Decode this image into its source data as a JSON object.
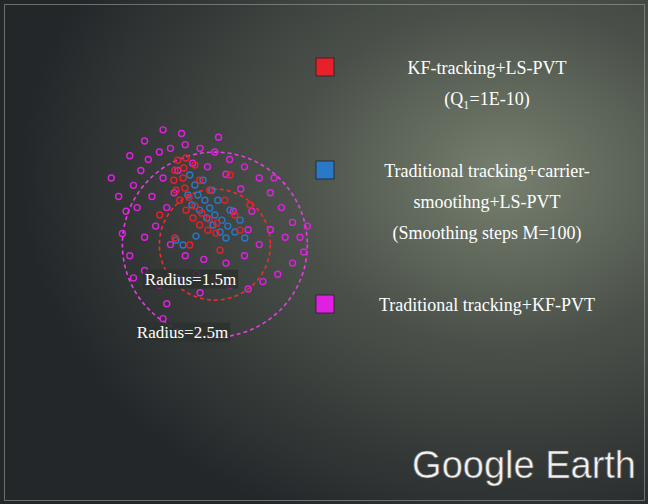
{
  "chart_data": {
    "type": "scatter",
    "xlim": [
      -5.7,
      11.6
    ],
    "ylim": [
      -6.9,
      6.5
    ],
    "tick_labels": false,
    "grid": false,
    "legend": "upper right",
    "series": [
      {
        "name": "KF-tracking+LS-PVT (Q₁=1E-10)",
        "color": "#e8202a",
        "marker": "circle",
        "x": [
          -1.0,
          -1.08,
          -1.11,
          -1.05,
          -0.95,
          -0.78,
          -0.59,
          -0.41,
          -0.19,
          0.03,
          -0.78,
          -0.84,
          -0.86,
          -0.81,
          -0.7,
          -0.54,
          -0.35,
          -0.16,
          0.05,
          -0.41,
          -0.14,
          0.27,
          0.54,
          0.68,
          -1.08,
          -0.68,
          0.14,
          -1.49,
          0.95,
          -0.54,
          0.41
        ],
        "values": [
          2.28,
          2.01,
          1.74,
          1.47,
          1.2,
          0.93,
          0.72,
          0.53,
          0.39,
          0.31,
          2.34,
          2.07,
          1.8,
          1.53,
          1.28,
          1.04,
          0.85,
          0.69,
          0.58,
          1.74,
          1.47,
          1.2,
          0.8,
          0.39,
          0.18,
          -0.01,
          -0.15,
          0.8,
          1.07,
          2.15,
          1.88
        ]
      },
      {
        "name": "Traditional tracking+carrier-smootihng+LS-PVT (Smoothing steps M=100)",
        "color": "#2a78c8",
        "marker": "circle",
        "x": [
          -0.68,
          -0.54,
          -0.46,
          -0.27,
          -0.14,
          0.0,
          0.19,
          0.35,
          0.54,
          -0.41,
          -0.22,
          -0.05,
          0.14,
          0.3,
          -0.73,
          -0.62,
          0.41,
          0.68,
          -1.05,
          -0.86,
          -0.51,
          0.81,
          0.08,
          -0.08,
          -0.32
        ],
        "values": [
          1.88,
          1.61,
          1.34,
          1.2,
          0.99,
          0.8,
          0.66,
          0.5,
          0.34,
          0.93,
          0.72,
          0.53,
          0.34,
          0.18,
          1.34,
          1.07,
          0.93,
          0.66,
          0.12,
          -0.01,
          0.23,
          0.18,
          1.2,
          1.47,
          1.74
        ]
      },
      {
        "name": "Traditional tracking+KF-PVT",
        "color": "#e020e0",
        "marker": "circle",
        "x": [
          -2.2,
          -2.0,
          -1.8,
          -1.5,
          -1.2,
          -0.8,
          -0.4,
          0.0,
          0.4,
          0.8,
          1.2,
          1.5,
          1.8,
          2.1,
          2.3,
          2.4,
          2.1,
          1.7,
          1.3,
          0.9,
          0.4,
          0.0,
          -0.5,
          -1.0,
          -1.5,
          -1.9,
          -2.3,
          -2.5,
          -2.4,
          -2.6,
          -2.3,
          -1.9,
          -1.4,
          -0.9,
          -2.1,
          -1.7,
          -1.3,
          -1.6,
          -1.9,
          -1.2,
          -0.8,
          -0.3,
          0.3,
          0.8,
          1.2,
          1.5,
          1.0,
          0.7,
          0.3,
          -0.2,
          -0.6,
          -1.0,
          -1.4,
          -1.1,
          0.5,
          0.9,
          -0.4,
          -1.3,
          -1.4,
          1.9,
          2.5,
          1.6,
          -2.8,
          -2.2,
          0.1
        ],
        "values": [
          1.6,
          2.0,
          2.3,
          2.5,
          2.6,
          2.7,
          2.6,
          2.5,
          2.3,
          2.1,
          1.8,
          1.4,
          1.0,
          0.6,
          0.2,
          -0.2,
          -0.5,
          -0.8,
          -1.0,
          -1.2,
          -1.1,
          -0.9,
          -0.8,
          -0.9,
          -1.1,
          -0.7,
          -0.3,
          0.3,
          0.9,
          1.3,
          2.4,
          2.8,
          3.1,
          3.0,
          1.0,
          1.3,
          1.0,
          0.5,
          0.2,
          0.0,
          -0.3,
          -0.4,
          -0.5,
          -0.3,
          0.0,
          0.4,
          0.9,
          1.5,
          1.9,
          2.1,
          2.2,
          2.0,
          1.8,
          1.4,
          0.9,
          0.4,
          -1.3,
          -1.6,
          -2.0,
          0.2,
          0.5,
          1.8,
          1.8,
          -0.9,
          2.9
        ]
      }
    ],
    "circles": [
      {
        "center": [
          0,
          0
        ],
        "radius": 1.5,
        "label": "Radius=1.5m",
        "color": "#e8302a",
        "line_style": "dashed"
      },
      {
        "center": [
          0,
          0
        ],
        "radius": 2.5,
        "label": "Radius=2.5m",
        "color": "#e040e0",
        "line_style": "dashed"
      }
    ],
    "annotations": [
      {
        "text": "Google Earth"
      }
    ]
  }
}
